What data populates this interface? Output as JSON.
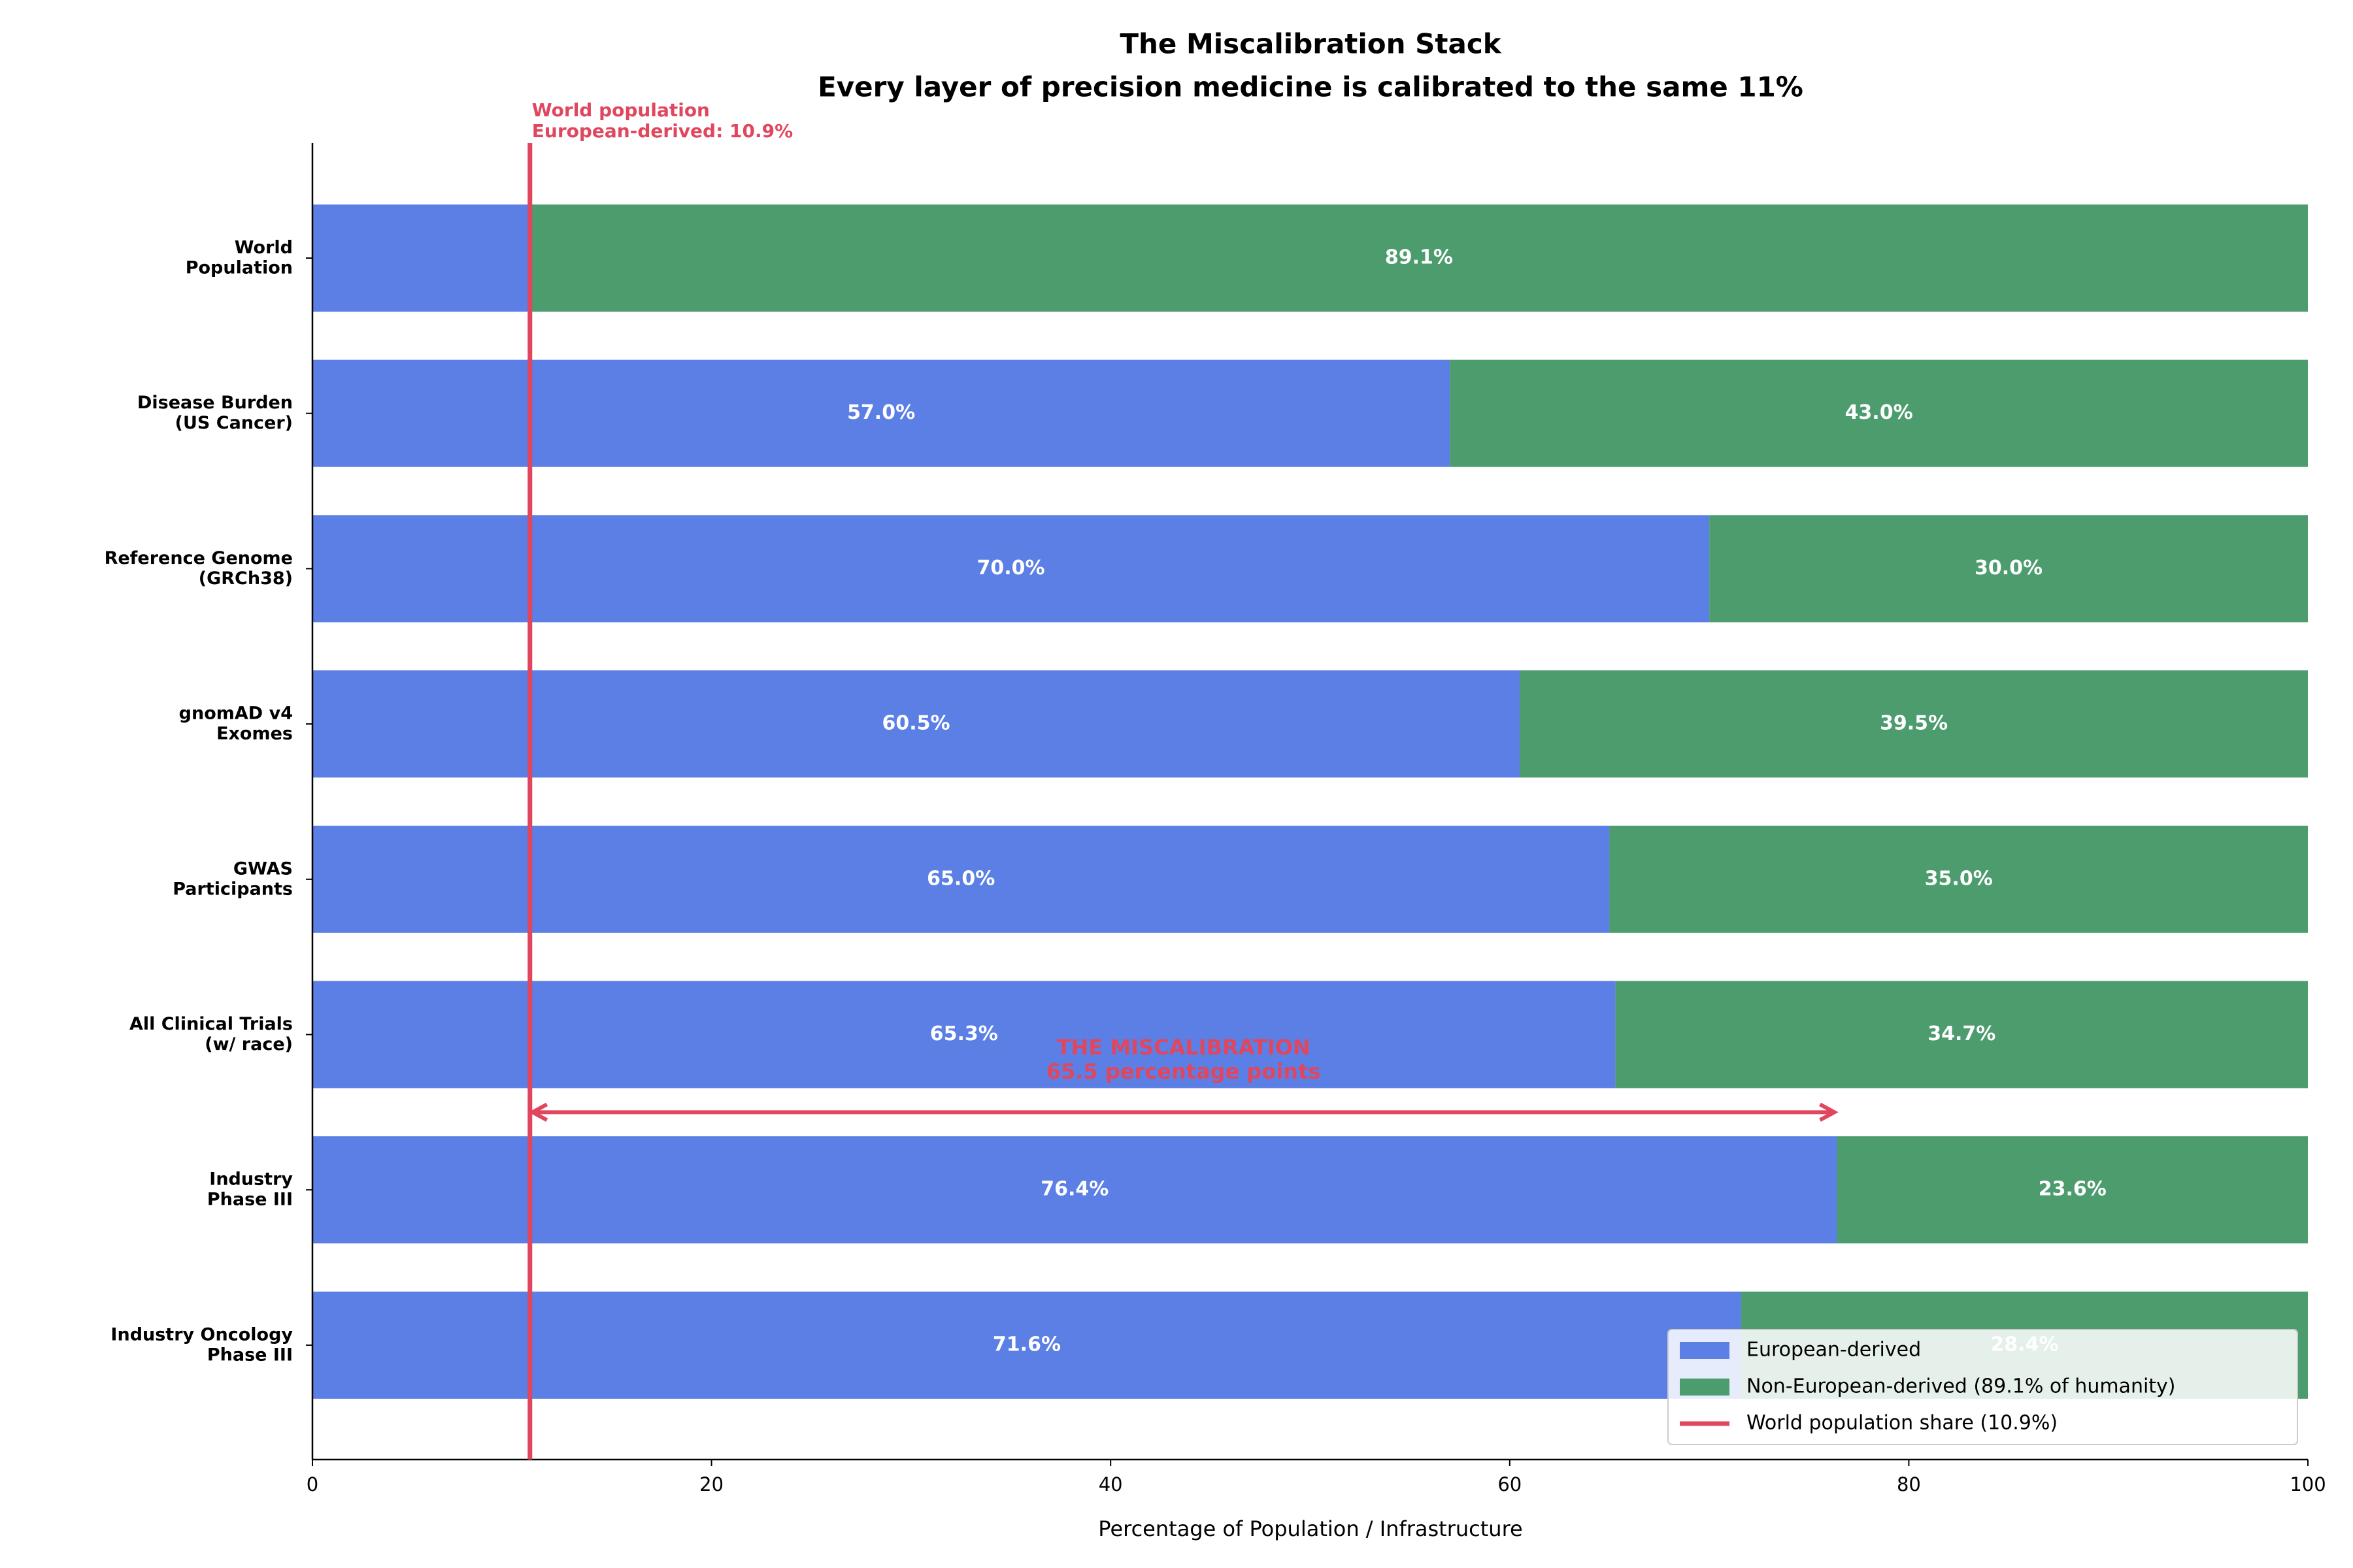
{
  "chart_data": {
    "type": "stacked_barh",
    "title": "The Miscalibration Stack",
    "subtitle": "Every layer of precision medicine is calibrated to the same 11%",
    "xlabel": "Percentage of Population / Infrastructure",
    "categories": [
      "World\nPopulation",
      "Disease Burden\n(US Cancer)",
      "Reference Genome\n(GRCh38)",
      "gnomAD v4\nExomes",
      "GWAS\nParticipants",
      "All Clinical Trials\n(w/ race)",
      "Industry\nPhase III",
      "Industry Oncology\nPhase III"
    ],
    "series": [
      {
        "name": "European-derived",
        "color": "#5b7fe4",
        "values": [
          10.9,
          57.0,
          70.0,
          60.5,
          65.0,
          65.3,
          76.4,
          71.6
        ],
        "value_labels": [
          null,
          "57.0%",
          "70.0%",
          "60.5%",
          "65.0%",
          "65.3%",
          "76.4%",
          "71.6%"
        ]
      },
      {
        "name": "Non-European-derived (89.1% of humanity)",
        "color": "#4c9c6e",
        "values": [
          89.1,
          43.0,
          30.0,
          39.5,
          35.0,
          34.7,
          23.6,
          28.4
        ],
        "value_labels": [
          "89.1%",
          "43.0%",
          "30.0%",
          "39.5%",
          "35.0%",
          "34.7%",
          "23.6%",
          "28.4%"
        ]
      }
    ],
    "reference_line": {
      "value": 10.9,
      "color": "#e0475f",
      "name": "World population share (10.9%)",
      "label": "World population\nEuropean-derived: 10.9%"
    },
    "arrow": {
      "from": 10.9,
      "to": 76.4,
      "color": "#e0475f",
      "label": "THE MISCALIBRATION\n65.5 percentage points"
    },
    "xlim": [
      0,
      100
    ],
    "xticks": [
      0,
      20,
      40,
      60,
      80,
      100
    ],
    "legend": "lower right"
  }
}
